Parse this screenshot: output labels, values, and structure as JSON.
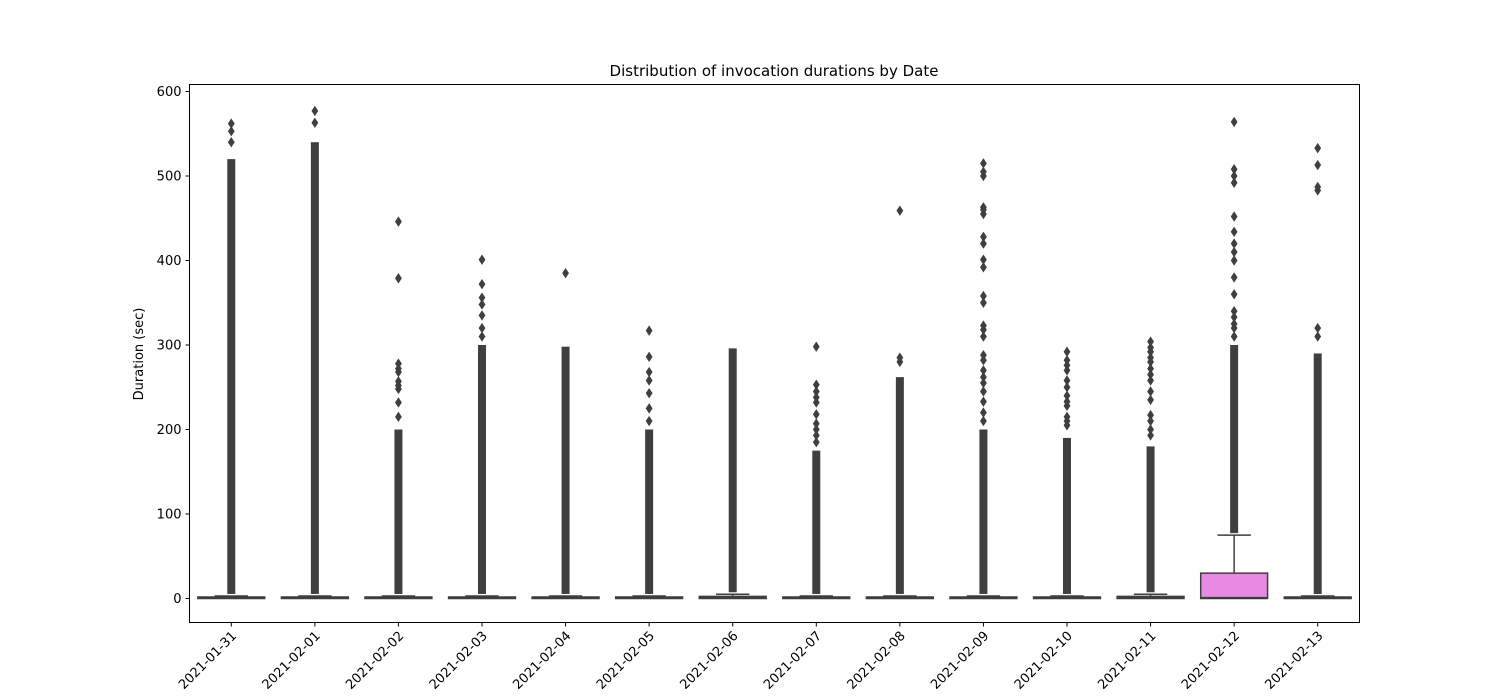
{
  "chart_data": {
    "type": "box",
    "title": "Distribution of invocation durations by Date",
    "xlabel": "",
    "ylabel": "Duration (sec)",
    "ylim": [
      -30,
      610
    ],
    "yticks": [
      0,
      100,
      200,
      300,
      400,
      500,
      600
    ],
    "categories": [
      "2021-01-31",
      "2021-02-01",
      "2021-02-02",
      "2021-02-03",
      "2021-02-04",
      "2021-02-05",
      "2021-02-06",
      "2021-02-07",
      "2021-02-08",
      "2021-02-09",
      "2021-02-10",
      "2021-02-11",
      "2021-02-12",
      "2021-02-13"
    ],
    "boxes": [
      {
        "category": "2021-01-31",
        "q1": 0,
        "median": 0.5,
        "q3": 1.5,
        "whisker_low": 0,
        "whisker_high": 3,
        "dense_outliers_max": 520,
        "outliers": [
          540,
          553,
          562
        ],
        "color": "#8c8c8c"
      },
      {
        "category": "2021-02-01",
        "q1": 0,
        "median": 0.5,
        "q3": 1.5,
        "whisker_low": 0,
        "whisker_high": 3,
        "dense_outliers_max": 540,
        "outliers": [
          563,
          577
        ],
        "color": "#8c8c8c"
      },
      {
        "category": "2021-02-02",
        "q1": 0,
        "median": 0.5,
        "q3": 1.5,
        "whisker_low": 0,
        "whisker_high": 3,
        "dense_outliers_max": 200,
        "outliers": [
          215,
          232,
          248,
          252,
          257,
          268,
          272,
          278,
          379,
          446
        ],
        "color": "#8c8c8c"
      },
      {
        "category": "2021-02-03",
        "q1": 0,
        "median": 0.5,
        "q3": 1.5,
        "whisker_low": 0,
        "whisker_high": 3,
        "dense_outliers_max": 300,
        "outliers": [
          310,
          320,
          335,
          348,
          356,
          372,
          401
        ],
        "color": "#8c8c8c"
      },
      {
        "category": "2021-02-04",
        "q1": 0,
        "median": 0.5,
        "q3": 1.5,
        "whisker_low": 0,
        "whisker_high": 3,
        "dense_outliers_max": 298,
        "outliers": [
          385
        ],
        "color": "#8c8c8c"
      },
      {
        "category": "2021-02-05",
        "q1": 0,
        "median": 0.5,
        "q3": 1.5,
        "whisker_low": 0,
        "whisker_high": 3,
        "dense_outliers_max": 200,
        "outliers": [
          210,
          225,
          243,
          258,
          268,
          286,
          317
        ],
        "color": "#8c8c8c"
      },
      {
        "category": "2021-02-06",
        "q1": 0,
        "median": 1,
        "q3": 2.5,
        "whisker_low": 0,
        "whisker_high": 5,
        "dense_outliers_max": 296,
        "outliers": [],
        "color": "#8c8c8c"
      },
      {
        "category": "2021-02-07",
        "q1": 0,
        "median": 0.5,
        "q3": 1.5,
        "whisker_low": 0,
        "whisker_high": 3,
        "dense_outliers_max": 175,
        "outliers": [
          185,
          193,
          200,
          207,
          218,
          232,
          238,
          245,
          253,
          298
        ],
        "color": "#8c8c8c"
      },
      {
        "category": "2021-02-08",
        "q1": 0,
        "median": 0.5,
        "q3": 1.5,
        "whisker_low": 0,
        "whisker_high": 3,
        "dense_outliers_max": 262,
        "outliers": [
          280,
          285,
          459
        ],
        "color": "#8c8c8c"
      },
      {
        "category": "2021-02-09",
        "q1": 0,
        "median": 0.5,
        "q3": 1.5,
        "whisker_low": 0,
        "whisker_high": 3,
        "dense_outliers_max": 200,
        "outliers": [
          210,
          220,
          233,
          245,
          255,
          262,
          270,
          282,
          288,
          310,
          318,
          323,
          350,
          358,
          392,
          401,
          420,
          428,
          455,
          460,
          463,
          500,
          505,
          515
        ],
        "color": "#8c8c8c"
      },
      {
        "category": "2021-02-10",
        "q1": 0,
        "median": 0.5,
        "q3": 1.5,
        "whisker_low": 0,
        "whisker_high": 3,
        "dense_outliers_max": 190,
        "outliers": [
          205,
          210,
          215,
          228,
          233,
          240,
          250,
          258,
          270,
          276,
          282,
          292
        ],
        "color": "#8c8c8c"
      },
      {
        "category": "2021-02-11",
        "q1": 0,
        "median": 1,
        "q3": 2.5,
        "whisker_low": 0,
        "whisker_high": 5,
        "dense_outliers_max": 180,
        "outliers": [
          193,
          200,
          210,
          217,
          235,
          245,
          258,
          265,
          272,
          280,
          285,
          292,
          297,
          304
        ],
        "color": "#8c8c8c"
      },
      {
        "category": "2021-02-12",
        "q1": 0,
        "median": 1,
        "q3": 30,
        "whisker_low": 0,
        "whisker_high": 75,
        "dense_outliers_max": 300,
        "outliers": [
          310,
          320,
          325,
          333,
          340,
          360,
          380,
          400,
          410,
          420,
          434,
          452,
          492,
          500,
          508,
          564
        ],
        "color": "#e88ae3"
      },
      {
        "category": "2021-02-13",
        "q1": 0,
        "median": 0.5,
        "q3": 1.5,
        "whisker_low": 0,
        "whisker_high": 3,
        "dense_outliers_max": 290,
        "outliers": [
          310,
          320,
          483,
          487,
          513,
          533
        ],
        "color": "#8c8c8c"
      }
    ]
  }
}
